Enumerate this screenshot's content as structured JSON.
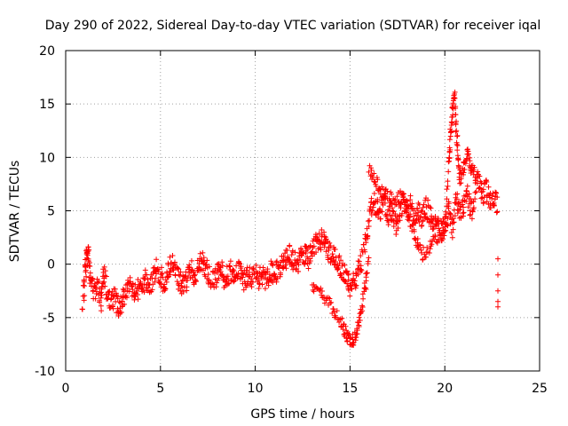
{
  "chart_data": {
    "type": "scatter",
    "title": "Day 290 of 2022, Sidereal Day-to-day VTEC variation (SDTVAR) for receiver iqal",
    "xlabel": "GPS time / hours",
    "ylabel": "SDTVAR / TECUs",
    "xlim": [
      0,
      25
    ],
    "ylim": [
      -10,
      20
    ],
    "xticks": [
      0,
      5,
      10,
      15,
      20,
      25
    ],
    "yticks": [
      -10,
      -5,
      0,
      5,
      10,
      15,
      20
    ],
    "grid": true,
    "marker": "+",
    "color": "#ff0000",
    "series": [
      {
        "name": "SDTVAR",
        "trace": [
          [
            0.9,
            -3.5
          ],
          [
            1.0,
            -1.0
          ],
          [
            1.1,
            0.5
          ],
          [
            1.2,
            1.6
          ],
          [
            1.3,
            -1.5
          ],
          [
            1.5,
            -2.5
          ],
          [
            1.7,
            -2.0
          ],
          [
            1.9,
            -3.5
          ],
          [
            2.0,
            -1.0
          ],
          [
            2.2,
            -2.5
          ],
          [
            2.4,
            -3.5
          ],
          [
            2.6,
            -3.0
          ],
          [
            2.8,
            -4.5
          ],
          [
            3.0,
            -3.5
          ],
          [
            3.2,
            -2.5
          ],
          [
            3.4,
            -1.5
          ],
          [
            3.6,
            -3.0
          ],
          [
            3.8,
            -2.5
          ],
          [
            4.0,
            -2.0
          ],
          [
            4.2,
            -1.5
          ],
          [
            4.4,
            -2.5
          ],
          [
            4.6,
            -1.0
          ],
          [
            4.8,
            -0.5
          ],
          [
            5.0,
            -1.0
          ],
          [
            5.2,
            -2.0
          ],
          [
            5.4,
            -0.5
          ],
          [
            5.6,
            0.0
          ],
          [
            5.8,
            -1.0
          ],
          [
            6.0,
            -1.5
          ],
          [
            6.2,
            -2.0
          ],
          [
            6.4,
            -1.5
          ],
          [
            6.6,
            -0.5
          ],
          [
            6.8,
            -1.0
          ],
          [
            7.0,
            -0.5
          ],
          [
            7.2,
            0.5
          ],
          [
            7.4,
            -0.5
          ],
          [
            7.6,
            -1.0
          ],
          [
            7.8,
            -1.5
          ],
          [
            8.0,
            -1.0
          ],
          [
            8.2,
            -0.5
          ],
          [
            8.4,
            -1.5
          ],
          [
            8.6,
            -1.0
          ],
          [
            8.8,
            -0.5
          ],
          [
            9.0,
            -1.0
          ],
          [
            9.2,
            -0.5
          ],
          [
            9.4,
            -1.5
          ],
          [
            9.6,
            -1.0
          ],
          [
            9.8,
            -1.5
          ],
          [
            10.0,
            -1.0
          ],
          [
            10.2,
            -1.5
          ],
          [
            10.4,
            -1.0
          ],
          [
            10.6,
            -1.5
          ],
          [
            10.8,
            -0.5
          ],
          [
            11.0,
            -1.0
          ],
          [
            11.2,
            -0.5
          ],
          [
            11.4,
            0.0
          ],
          [
            11.6,
            0.5
          ],
          [
            11.8,
            1.0
          ],
          [
            12.0,
            0.5
          ],
          [
            12.2,
            0.0
          ],
          [
            12.4,
            0.5
          ],
          [
            12.6,
            1.0
          ],
          [
            12.8,
            0.5
          ],
          [
            13.0,
            1.5
          ],
          [
            13.2,
            2.0
          ],
          [
            13.4,
            2.5
          ],
          [
            13.6,
            2.0
          ],
          [
            13.8,
            1.5
          ],
          [
            14.0,
            1.0
          ],
          [
            14.2,
            0.5
          ],
          [
            14.4,
            0.0
          ],
          [
            14.6,
            -0.5
          ],
          [
            14.8,
            -1.0
          ],
          [
            15.0,
            -2.0
          ],
          [
            15.2,
            -1.5
          ],
          [
            15.4,
            -1.0
          ],
          [
            15.6,
            0.0
          ],
          [
            15.8,
            2.0
          ],
          [
            16.0,
            4.0
          ],
          [
            16.2,
            6.0
          ],
          [
            16.4,
            5.5
          ],
          [
            16.6,
            5.0
          ],
          [
            16.8,
            6.0
          ],
          [
            17.0,
            4.5
          ],
          [
            17.2,
            5.0
          ],
          [
            17.4,
            3.5
          ],
          [
            17.6,
            4.5
          ],
          [
            17.8,
            6.0
          ],
          [
            18.0,
            5.0
          ],
          [
            18.2,
            5.5
          ],
          [
            18.4,
            4.5
          ],
          [
            18.6,
            5.0
          ],
          [
            18.8,
            4.0
          ],
          [
            19.0,
            5.5
          ],
          [
            19.2,
            4.5
          ],
          [
            19.4,
            3.5
          ],
          [
            19.6,
            4.0
          ],
          [
            19.8,
            3.0
          ],
          [
            20.0,
            3.5
          ],
          [
            20.2,
            5.0
          ],
          [
            20.4,
            3.0
          ],
          [
            20.6,
            6.0
          ],
          [
            20.8,
            5.0
          ],
          [
            21.0,
            5.5
          ],
          [
            21.2,
            6.5
          ],
          [
            21.4,
            5.0
          ],
          [
            21.6,
            7.0
          ],
          [
            21.8,
            8.0
          ],
          [
            22.0,
            6.5
          ],
          [
            22.2,
            7.0
          ],
          [
            22.4,
            6.0
          ],
          [
            22.6,
            6.5
          ],
          [
            22.8,
            5.5
          ]
        ],
        "trace_lower": [
          [
            13.0,
            -2.0
          ],
          [
            13.4,
            -2.5
          ],
          [
            13.8,
            -3.5
          ],
          [
            14.2,
            -4.5
          ],
          [
            14.6,
            -5.5
          ],
          [
            14.8,
            -6.5
          ],
          [
            15.0,
            -7.3
          ],
          [
            15.2,
            -7.0
          ],
          [
            15.4,
            -6.0
          ],
          [
            15.6,
            -4.5
          ],
          [
            15.8,
            -2.0
          ],
          [
            16.0,
            0.5
          ]
        ],
        "trace_upper": [
          [
            16.0,
            8.8
          ],
          [
            16.3,
            8.0
          ],
          [
            16.6,
            7.0
          ],
          [
            17.0,
            6.5
          ],
          [
            17.4,
            6.0
          ],
          [
            17.8,
            6.5
          ],
          [
            18.2,
            4.0
          ],
          [
            18.5,
            2.0
          ],
          [
            18.8,
            1.0
          ],
          [
            19.2,
            1.5
          ],
          [
            19.6,
            2.5
          ],
          [
            20.0,
            3.0
          ],
          [
            20.2,
            9.0
          ],
          [
            20.3,
            12.0
          ],
          [
            20.4,
            14.0
          ],
          [
            20.5,
            16.2
          ],
          [
            20.6,
            13.0
          ],
          [
            20.7,
            10.0
          ],
          [
            20.8,
            8.0
          ],
          [
            21.0,
            9.0
          ],
          [
            21.2,
            10.5
          ],
          [
            21.4,
            9.0
          ],
          [
            21.6,
            8.5
          ]
        ],
        "isolated": [
          [
            22.8,
            0.5
          ],
          [
            22.8,
            -1.0
          ],
          [
            22.8,
            -2.5
          ],
          [
            22.8,
            -3.5
          ],
          [
            22.8,
            -4.0
          ]
        ]
      }
    ]
  }
}
